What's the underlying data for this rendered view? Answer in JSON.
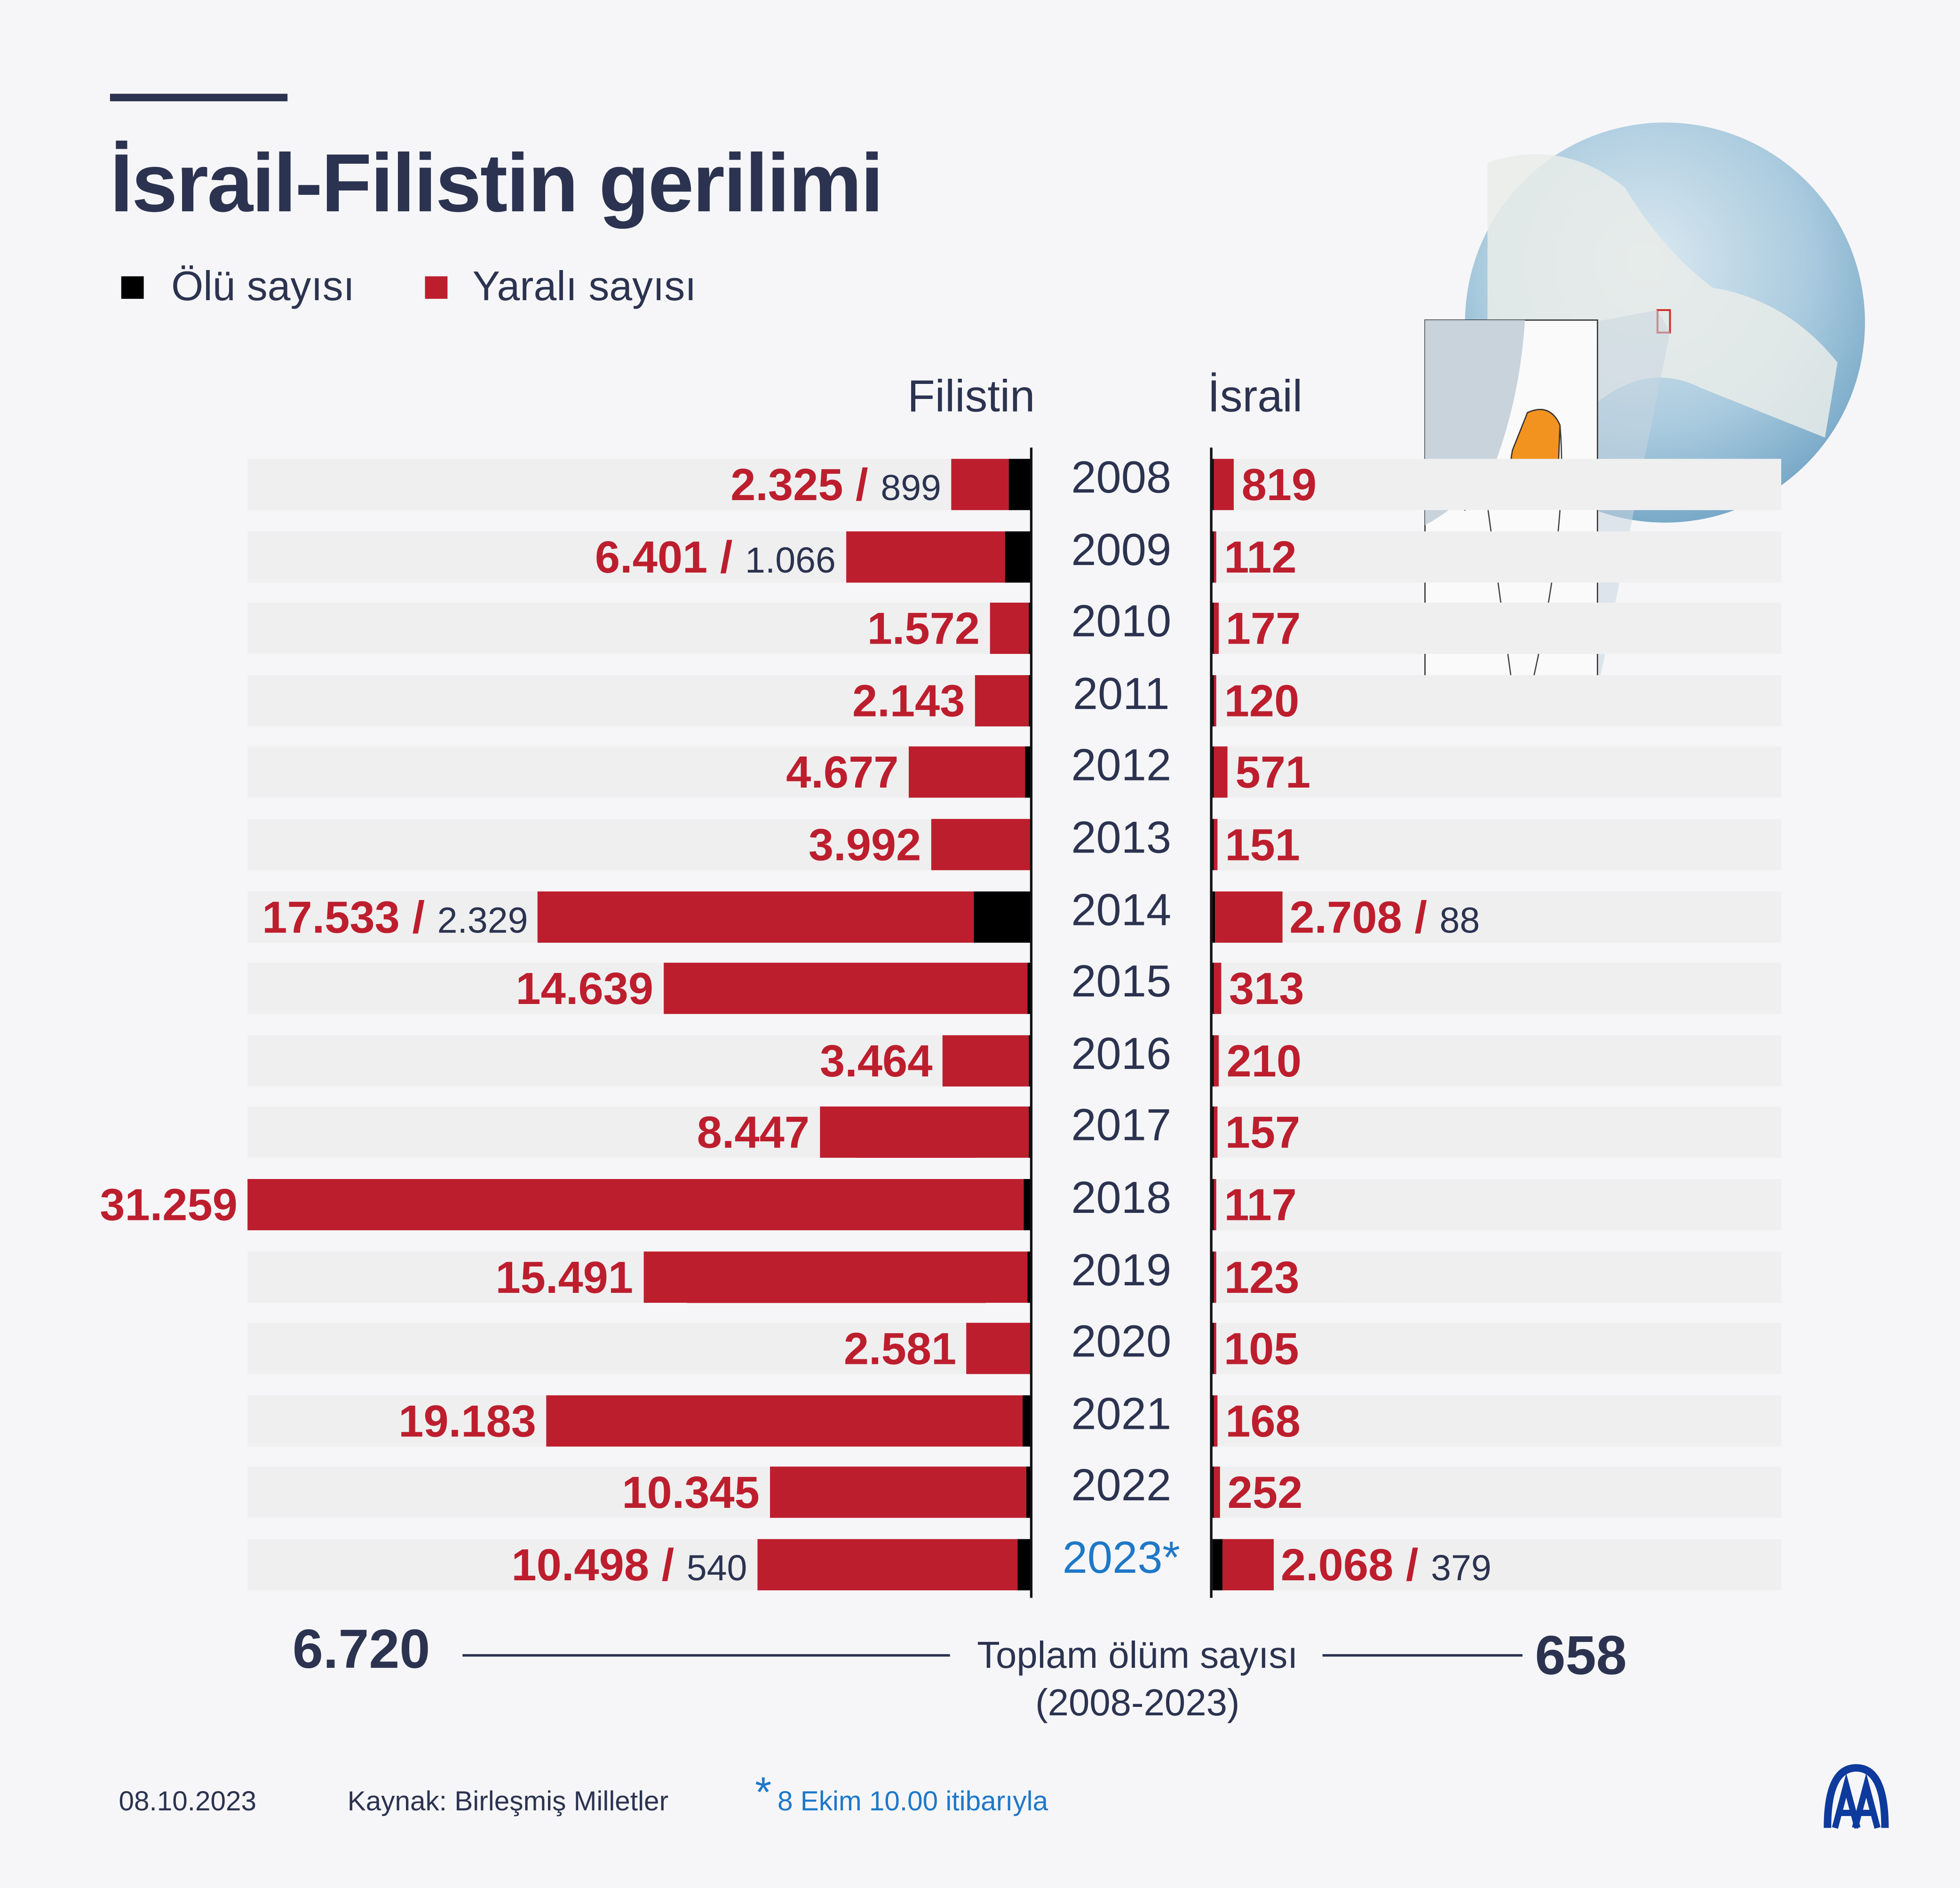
{
  "title": "İsrail-Filistin gerilimi",
  "legend": [
    {
      "label": "Ölü sayısı",
      "color": "#000000"
    },
    {
      "label": "Yaralı sayısı",
      "color": "#bd1e2d"
    }
  ],
  "headers": {
    "left": "Filistin",
    "right": "İsrail"
  },
  "totals": {
    "label": "Toplam ölüm sayısı",
    "period": "(2008-2023)",
    "palestine": "6.720",
    "israel": "658"
  },
  "footer": {
    "date": "08.10.2023",
    "source": "Kaynak: Birleşmiş Milletler",
    "note_mark": "*",
    "note": "8 Ekim 10.00 itibarıyla",
    "logo": "AA"
  },
  "colors": {
    "injured": "#bd1e2d",
    "dead": "#000000",
    "text": "#2b3350",
    "highlight_year": "#1e78c8",
    "inset_territory": "#f3931f"
  },
  "chart_data": {
    "type": "bar",
    "orientation": "horizontal-butterfly",
    "categories": [
      "2008",
      "2009",
      "2010",
      "2011",
      "2012",
      "2013",
      "2014",
      "2015",
      "2016",
      "2017",
      "2018",
      "2019",
      "2020",
      "2021",
      "2022",
      "2023*"
    ],
    "highlight_category": "2023*",
    "series": [
      {
        "name": "Filistin",
        "side": "left",
        "injured": [
          2325,
          6401,
          1572,
          2143,
          4677,
          3992,
          17533,
          14639,
          3464,
          8447,
          31259,
          15491,
          2581,
          19183,
          10345,
          10498
        ],
        "injured_labels": [
          "2.325",
          "6.401",
          "1.572",
          "2.143",
          "4.677",
          "3.992",
          "17.533",
          "14.639",
          "3.464",
          "8.447",
          "31.259",
          "15.491",
          "2.581",
          "19.183",
          "10.345",
          "10.498"
        ],
        "dead": [
          899,
          1066,
          95,
          124,
          260,
          39,
          2329,
          174,
          110,
          77,
          299,
          137,
          30,
          349,
          191,
          540
        ],
        "dead_labels": [
          "899",
          "1.066",
          "",
          "",
          "",
          "",
          "2.329",
          "",
          "",
          "",
          "",
          "",
          "",
          "",
          "",
          "540"
        ]
      },
      {
        "name": "İsrail",
        "side": "right",
        "injured": [
          819,
          112,
          177,
          120,
          571,
          151,
          2708,
          313,
          210,
          157,
          117,
          123,
          105,
          168,
          252,
          2068
        ],
        "injured_labels": [
          "819",
          "112",
          "177",
          "120",
          "571",
          "151",
          "2.708",
          "313",
          "210",
          "157",
          "117",
          "123",
          "105",
          "168",
          "252",
          "2.068"
        ],
        "dead": [
          27,
          9,
          9,
          11,
          7,
          6,
          88,
          25,
          13,
          15,
          14,
          10,
          3,
          13,
          29,
          379
        ],
        "dead_labels": [
          "",
          "",
          "",
          "",
          "",
          "",
          "88",
          "",
          "",
          "",
          "",
          "",
          "",
          "",
          "",
          "379"
        ]
      }
    ],
    "grid": false
  }
}
